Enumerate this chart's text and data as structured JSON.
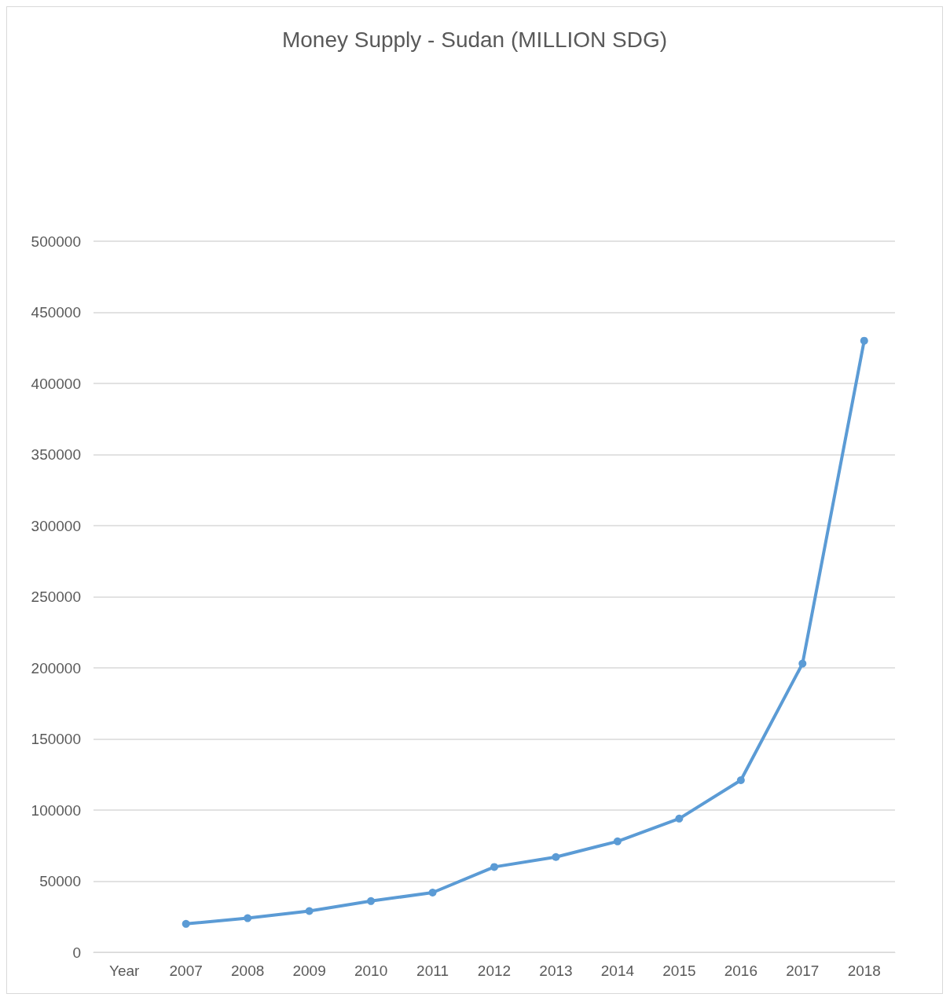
{
  "chart_data": {
    "type": "line",
    "title": "Money Supply - Sudan (MILLION SDG)",
    "categories": [
      "Year",
      "2007",
      "2008",
      "2009",
      "2010",
      "2011",
      "2012",
      "2013",
      "2014",
      "2015",
      "2016",
      "2017",
      "2018"
    ],
    "series": [
      {
        "color": "#5b9bd5",
        "values": [
          null,
          20000,
          24000,
          29000,
          36000,
          42000,
          60000,
          67000,
          78000,
          94000,
          121000,
          203000,
          430000
        ]
      }
    ],
    "ylim": [
      0,
      500000
    ],
    "yticks": [
      0,
      50000,
      100000,
      150000,
      200000,
      250000,
      300000,
      350000,
      400000,
      450000,
      500000
    ],
    "grid": "y",
    "marker": "circle",
    "line_style": "solid"
  }
}
